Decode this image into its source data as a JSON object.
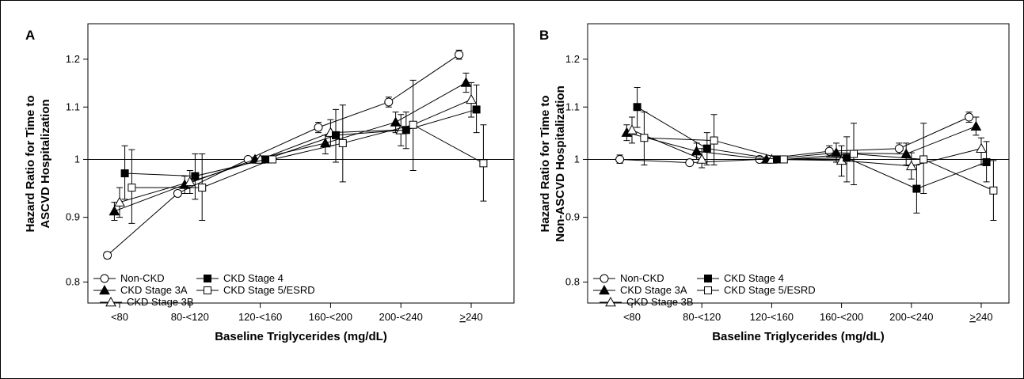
{
  "chart_data": [
    {
      "type": "line",
      "panel_label": "A",
      "xlabel": "Baseline Triglycerides (mg/dL)",
      "ylabel": "Hazard Ratio for Time to",
      "ylabel2": "ASCVD Hospitalization",
      "categories": [
        "<80",
        "80-<120",
        "120-<160",
        "160-<200",
        "200-<240",
        ">240"
      ],
      "yticks": [
        0.8,
        0.9,
        1,
        1.1,
        1.2
      ],
      "ytick_labels": [
        "0.8",
        "0.9",
        "1",
        "1.1",
        "1.2"
      ],
      "ylim": [
        0.77,
        1.28
      ],
      "yscale": "log",
      "reference_line": 1,
      "series": [
        {
          "name": "Non-CKD",
          "marker": "circle-open",
          "values": [
            0.84,
            0.94,
            1.0,
            1.06,
            1.11,
            1.21
          ],
          "lower": [
            0.835,
            0.935,
            1.0,
            1.05,
            1.1,
            1.2
          ],
          "upper": [
            0.845,
            0.945,
            1.0,
            1.07,
            1.12,
            1.22
          ]
        },
        {
          "name": "CKD Stage 3A",
          "marker": "triangle-filled",
          "values": [
            0.91,
            0.955,
            1.0,
            1.03,
            1.07,
            1.15
          ],
          "lower": [
            0.895,
            0.94,
            1.0,
            1.01,
            1.05,
            1.13
          ],
          "upper": [
            0.925,
            0.97,
            1.0,
            1.045,
            1.09,
            1.17
          ]
        },
        {
          "name": "CKD Stage 3B",
          "marker": "triangle-open",
          "values": [
            0.925,
            0.96,
            1.0,
            1.05,
            1.055,
            1.115
          ],
          "lower": [
            0.9,
            0.94,
            1.0,
            1.025,
            1.025,
            1.08
          ],
          "upper": [
            0.95,
            0.98,
            1.0,
            1.075,
            1.085,
            1.15
          ]
        },
        {
          "name": "CKD Stage 4",
          "marker": "square-filled",
          "values": [
            0.975,
            0.97,
            1.0,
            1.045,
            1.055,
            1.095
          ],
          "lower": [
            0.93,
            0.93,
            1.0,
            0.995,
            1.02,
            1.05
          ],
          "upper": [
            1.025,
            1.01,
            1.0,
            1.095,
            1.09,
            1.145
          ]
        },
        {
          "name": "CKD Stage 5/ESRD",
          "marker": "square-open",
          "values": [
            0.95,
            0.95,
            1.0,
            1.03,
            1.065,
            0.993
          ],
          "lower": [
            0.89,
            0.895,
            1.0,
            0.96,
            0.98,
            0.927
          ],
          "upper": [
            1.018,
            1.01,
            1.0,
            1.104,
            1.155,
            1.065
          ]
        }
      ]
    },
    {
      "type": "line",
      "panel_label": "B",
      "xlabel": "Baseline Triglycerides (mg/dL)",
      "ylabel": "Hazard Ratio for Time to",
      "ylabel2": "Non-ASCVD Hospitalization",
      "categories": [
        "<80",
        "80-<120",
        "120-<160",
        "160-<200",
        "200-<240",
        ">240"
      ],
      "yticks": [
        0.8,
        0.9,
        1,
        1.1,
        1.2
      ],
      "ytick_labels": [
        "0.8",
        "0.9",
        "1",
        "1.1",
        "1.2"
      ],
      "ylim": [
        0.77,
        1.28
      ],
      "yscale": "log",
      "reference_line": 1,
      "series": [
        {
          "name": "Non-CKD",
          "marker": "circle-open",
          "values": [
            1.0,
            0.994,
            1.0,
            1.015,
            1.02,
            1.08
          ],
          "lower": [
            0.993,
            0.99,
            1.0,
            1.005,
            1.01,
            1.07
          ],
          "upper": [
            1.008,
            0.998,
            1.0,
            1.025,
            1.03,
            1.09
          ]
        },
        {
          "name": "CKD Stage 3A",
          "marker": "triangle-filled",
          "values": [
            1.05,
            1.015,
            1.0,
            1.012,
            1.01,
            1.062
          ],
          "lower": [
            1.035,
            1.0,
            1.0,
            0.995,
            0.99,
            1.045
          ],
          "upper": [
            1.065,
            1.03,
            1.0,
            1.03,
            1.03,
            1.08
          ]
        },
        {
          "name": "CKD Stage 3B",
          "marker": "triangle-open",
          "values": [
            1.055,
            1.0,
            1.0,
            0.998,
            0.988,
            1.02
          ],
          "lower": [
            1.03,
            0.985,
            1.0,
            0.97,
            0.965,
            0.99
          ],
          "upper": [
            1.08,
            1.02,
            1.0,
            1.025,
            1.012,
            1.04
          ]
        },
        {
          "name": "CKD Stage 4",
          "marker": "square-filled",
          "values": [
            1.1,
            1.02,
            1.0,
            1.003,
            0.948,
            0.995
          ],
          "lower": [
            1.06,
            0.99,
            1.0,
            0.96,
            0.907,
            0.96
          ],
          "upper": [
            1.14,
            1.05,
            1.0,
            1.042,
            0.99,
            1.033
          ]
        },
        {
          "name": "CKD Stage 5/ESRD",
          "marker": "square-open",
          "values": [
            1.04,
            1.035,
            1.0,
            1.01,
            1.0,
            0.945
          ],
          "lower": [
            0.99,
            0.99,
            1.0,
            0.955,
            0.94,
            0.895
          ],
          "upper": [
            1.09,
            1.085,
            1.0,
            1.068,
            1.068,
            0.998
          ]
        }
      ]
    }
  ]
}
